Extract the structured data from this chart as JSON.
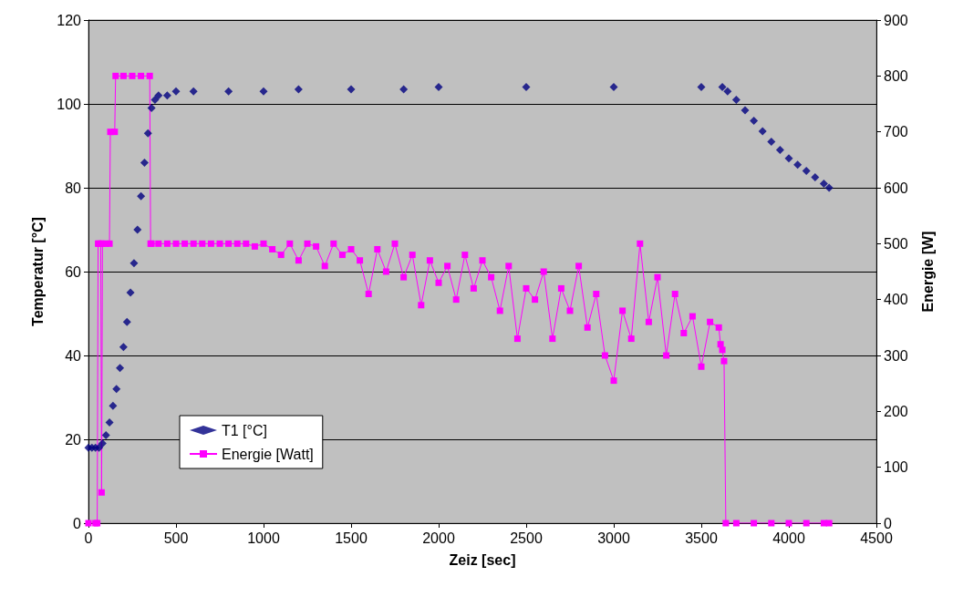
{
  "chart_data": {
    "type": "line",
    "xlabel": "Zeiz [sec]",
    "ylabel": "Temperatur [°C]",
    "y2label": "Energie [W]",
    "xlim": [
      0,
      4500
    ],
    "xticks": [
      0,
      500,
      1000,
      1500,
      2000,
      2500,
      3000,
      3500,
      4000,
      4500
    ],
    "ylim": [
      0,
      120
    ],
    "yticks": [
      0,
      20,
      40,
      60,
      80,
      100,
      120
    ],
    "y2lim": [
      0,
      900
    ],
    "y2ticks": [
      0,
      100,
      200,
      300,
      400,
      500,
      600,
      700,
      800,
      900
    ],
    "grid": "y",
    "legend": "bottom left",
    "series": [
      {
        "name": "T1 [°C]",
        "type": "scatter",
        "marker": "diamond",
        "color": "#000080",
        "x": [
          0,
          20,
          40,
          60,
          80,
          100,
          120,
          140,
          160,
          180,
          200,
          220,
          240,
          260,
          280,
          300,
          320,
          340,
          360,
          380,
          400,
          450,
          500,
          600,
          800,
          1000,
          1200,
          1500,
          1800,
          2000,
          2500,
          3000,
          3500,
          3620,
          3650,
          3700,
          3750,
          3800,
          3850,
          3900,
          3950,
          4000,
          4050,
          4100,
          4150,
          4200,
          4230
        ],
        "values": [
          18,
          18,
          18,
          18,
          19,
          21,
          24,
          28,
          32,
          37,
          42,
          48,
          55,
          62,
          70,
          78,
          86,
          93,
          99,
          101,
          102,
          102,
          103,
          103,
          103,
          103,
          103.5,
          103.5,
          103.5,
          104,
          104,
          104,
          104,
          104,
          103,
          101,
          98.5,
          96,
          93.5,
          91,
          89,
          87,
          85.5,
          84,
          82.5,
          81,
          80
        ]
      },
      {
        "name": "Energie [Watt]",
        "marker": "square",
        "line_style": "solid",
        "axis": "y2",
        "color": "#ff00ff",
        "x": [
          0,
          40,
          50,
          55,
          60,
          70,
          75,
          80,
          100,
          120,
          125,
          150,
          155,
          200,
          250,
          300,
          350,
          355,
          360,
          400,
          450,
          500,
          550,
          600,
          650,
          700,
          750,
          800,
          850,
          900,
          950,
          1000,
          1050,
          1100,
          1150,
          1200,
          1250,
          1300,
          1350,
          1400,
          1450,
          1500,
          1550,
          1600,
          1650,
          1700,
          1750,
          1800,
          1850,
          1900,
          1950,
          2000,
          2050,
          2100,
          2150,
          2200,
          2250,
          2300,
          2350,
          2400,
          2450,
          2500,
          2550,
          2600,
          2650,
          2700,
          2750,
          2800,
          2850,
          2900,
          2950,
          3000,
          3050,
          3100,
          3150,
          3200,
          3250,
          3300,
          3350,
          3400,
          3450,
          3500,
          3550,
          3600,
          3610,
          3620,
          3630,
          3640,
          3700,
          3800,
          3900,
          4000,
          4100,
          4200,
          4230
        ],
        "values": [
          0,
          0,
          0,
          500,
          500,
          500,
          55,
          500,
          500,
          500,
          700,
          700,
          800,
          800,
          800,
          800,
          800,
          500,
          500,
          500,
          500,
          500,
          500,
          500,
          500,
          500,
          500,
          500,
          500,
          500,
          495,
          500,
          490,
          480,
          500,
          470,
          500,
          495,
          460,
          500,
          480,
          490,
          470,
          410,
          490,
          450,
          500,
          440,
          480,
          390,
          470,
          430,
          460,
          400,
          480,
          420,
          470,
          440,
          380,
          460,
          330,
          420,
          400,
          450,
          330,
          420,
          380,
          460,
          350,
          410,
          300,
          255,
          380,
          330,
          500,
          360,
          440,
          300,
          410,
          340,
          370,
          280,
          360,
          350,
          320,
          310,
          290,
          0,
          0,
          0,
          0,
          0,
          0,
          0,
          0
        ]
      }
    ]
  }
}
